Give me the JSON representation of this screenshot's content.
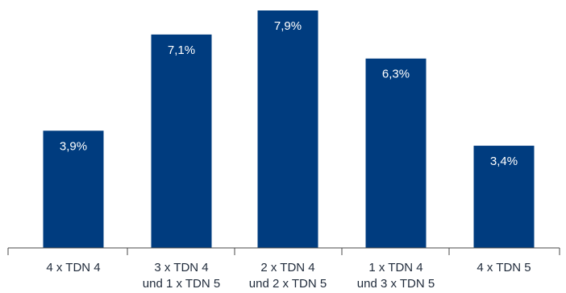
{
  "chart_data": {
    "type": "bar",
    "categories": [
      [
        "4 x TDN 4"
      ],
      [
        "3 x TDN 4",
        "und 1 x TDN 5"
      ],
      [
        "2 x TDN 4",
        "und 2 x TDN 5"
      ],
      [
        "1 x TDN 4",
        "und 3 x TDN 5"
      ],
      [
        "4 x TDN 5"
      ]
    ],
    "values": [
      3.9,
      7.1,
      7.9,
      6.3,
      3.4
    ],
    "value_labels": [
      "3,9%",
      "7,1%",
      "7,9%",
      "6,3%",
      "3,4%"
    ],
    "title": "",
    "xlabel": "",
    "ylabel": "",
    "ylim": [
      0,
      7.9
    ],
    "grid": false,
    "colors": {
      "bar": "#003c7f",
      "value_label": "#ffffff",
      "tick_label": "#1f2a3a",
      "axis": "#4a4a4a"
    }
  }
}
